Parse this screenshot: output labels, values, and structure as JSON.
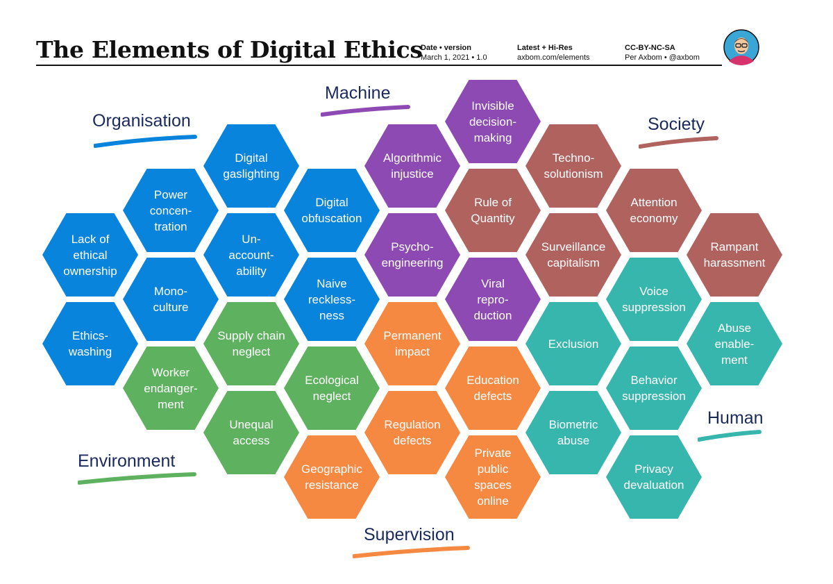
{
  "header": {
    "title": "The Elements of Digital Ethics",
    "meta": [
      {
        "label": "Date • version",
        "value": "March 1, 2021 • 1.0"
      },
      {
        "label": "Latest + Hi-Res",
        "value": "axbom.com/elements"
      },
      {
        "label": "CC-BY-NC-SA",
        "value": "Per Axbom • @axbom"
      }
    ]
  },
  "colors": {
    "organisation": "#0984dc",
    "machine": "#8d4ab3",
    "society": "#b0625f",
    "human": "#37b6ad",
    "environment": "#5eb25f",
    "supervision": "#f58942",
    "label_text": "#1a2a5c"
  },
  "categories": {
    "organisation": "Organisation",
    "machine": "Machine",
    "society": "Society",
    "human": "Human",
    "environment": "Environment",
    "supervision": "Supervision"
  },
  "elements": {
    "organisation": [
      "Digital\ngaslighting",
      "Power\nconcen-\ntration",
      "Digital\nobfuscation",
      "Lack of\nethical\nownership",
      "Un-\naccount-\nability",
      "Mono-\nculture",
      "Naive\nreckless-\nness",
      "Ethics-\nwashing"
    ],
    "machine": [
      "Invisible\ndecision-\nmaking",
      "Algorithmic\ninjustice",
      "Psycho-\nengineering",
      "Viral\nrepro-\nduction"
    ],
    "society": [
      "Techno-\nsolutionism",
      "Rule of\nQuantity",
      "Attention\neconomy",
      "Surveillance\ncapitalism",
      "Rampant\nharassment"
    ],
    "human": [
      "Voice\nsuppression",
      "Exclusion",
      "Abuse\nenable-\nment",
      "Behavior\nsuppression",
      "Biometric\nabuse",
      "Privacy\ndevaluation"
    ],
    "environment": [
      "Supply chain\nneglect",
      "Worker\nendanger-\nment",
      "Ecological\nneglect",
      "Unequal\naccess"
    ],
    "supervision": [
      "Permanent\nimpact",
      "Education\ndefects",
      "Regulation\ndefects",
      "Geographic\nresistance",
      "Private\npublic\nspaces\nonline"
    ]
  }
}
